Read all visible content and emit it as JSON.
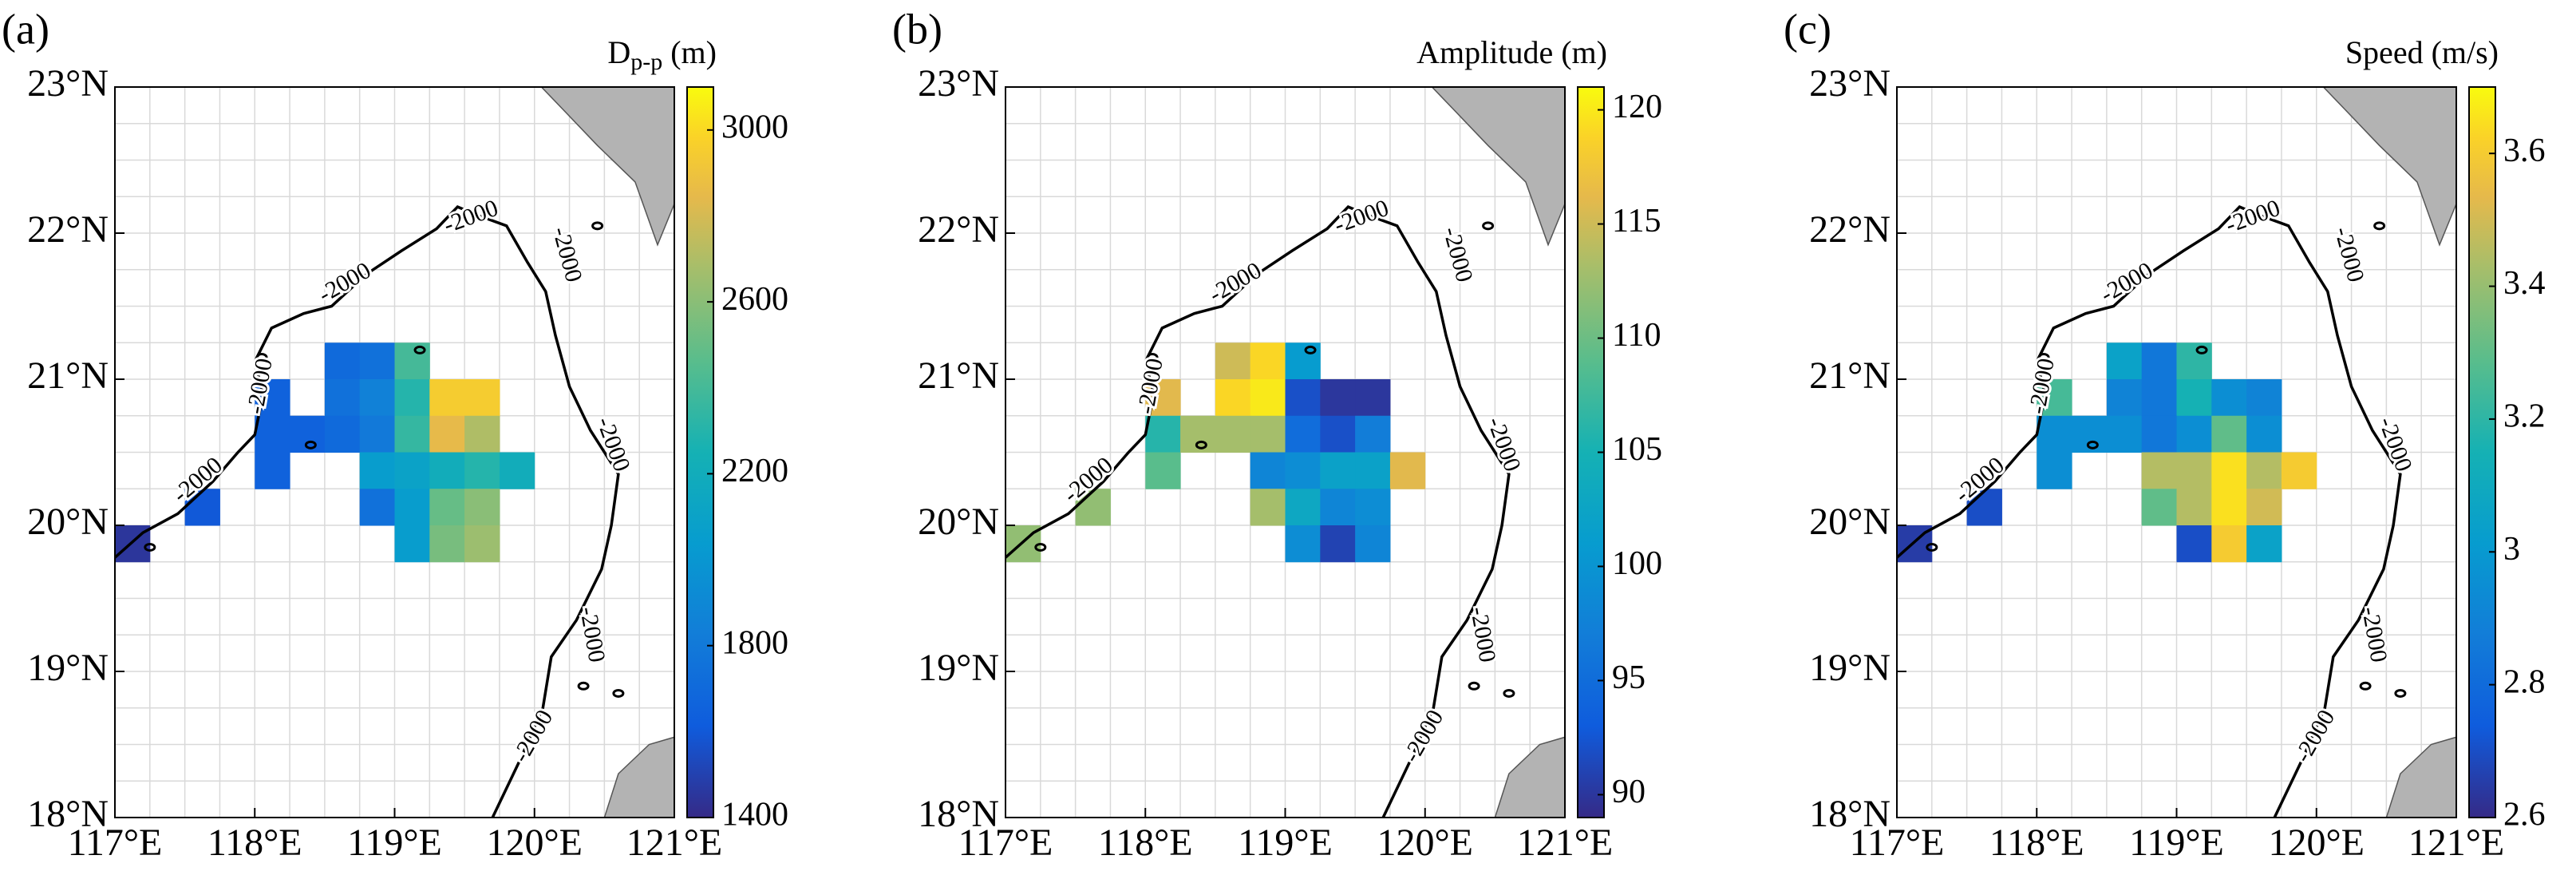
{
  "chart_data": [
    {
      "type": "heatmap",
      "panel_label": "(a)",
      "colorbar_label": {
        "text": "D",
        "sub": "p-p",
        "unit": "(m)"
      },
      "contour_label": "-2000",
      "xlim": [
        117,
        121
      ],
      "ylim": [
        18,
        23
      ],
      "xticks": [
        {
          "value": 117,
          "label": "117°E"
        },
        {
          "value": 118,
          "label": "118°E"
        },
        {
          "value": 119,
          "label": "119°E"
        },
        {
          "value": 120,
          "label": "120°E"
        },
        {
          "value": 121,
          "label": "121°E"
        }
      ],
      "yticks": [
        {
          "value": 18,
          "label": "18°N"
        },
        {
          "value": 19,
          "label": "19°N"
        },
        {
          "value": 20,
          "label": "20°N"
        },
        {
          "value": 21,
          "label": "21°N"
        },
        {
          "value": 22,
          "label": "22°N"
        },
        {
          "value": 23,
          "label": "23°N"
        }
      ],
      "clim": [
        1400,
        3100
      ],
      "cticks": [
        1400,
        1800,
        2200,
        2600,
        3000
      ],
      "x": [
        117.125,
        117.625,
        118.125,
        118.125,
        118.125,
        118.375,
        118.625,
        118.875,
        119.125,
        118.625,
        118.875,
        119.125,
        119.375,
        119.625,
        118.625,
        118.875,
        119.125,
        119.375,
        119.625,
        118.875,
        119.125,
        119.375,
        119.625,
        119.875,
        118.875,
        119.125,
        119.375,
        119.625,
        119.125,
        119.375,
        119.625
      ],
      "y": [
        19.875,
        20.125,
        20.875,
        20.625,
        20.375,
        20.625,
        21.125,
        21.125,
        21.125,
        20.875,
        20.875,
        20.875,
        20.875,
        20.875,
        20.625,
        20.625,
        20.625,
        20.625,
        20.625,
        20.375,
        20.375,
        20.375,
        20.375,
        20.375,
        20.125,
        20.125,
        20.125,
        20.125,
        19.875,
        19.875,
        19.875
      ],
      "values": [
        1450,
        1600,
        1650,
        1650,
        1650,
        1650,
        1700,
        1750,
        2400,
        1750,
        1850,
        2300,
        2950,
        2950,
        1700,
        1800,
        2350,
        2850,
        2700,
        2050,
        2100,
        2200,
        2300,
        2200,
        1750,
        2050,
        2500,
        2600,
        2050,
        2550,
        2650
      ]
    },
    {
      "type": "heatmap",
      "panel_label": "(b)",
      "colorbar_label": {
        "text": "Amplitude (m)"
      },
      "contour_label": "-2000",
      "xlim": [
        117,
        121
      ],
      "ylim": [
        18,
        23
      ],
      "xticks": [
        {
          "value": 117,
          "label": "117°E"
        },
        {
          "value": 118,
          "label": "118°E"
        },
        {
          "value": 119,
          "label": "119°E"
        },
        {
          "value": 120,
          "label": "120°E"
        },
        {
          "value": 121,
          "label": "121°E"
        }
      ],
      "yticks": [
        {
          "value": 18,
          "label": "18°N"
        },
        {
          "value": 19,
          "label": "19°N"
        },
        {
          "value": 20,
          "label": "20°N"
        },
        {
          "value": 21,
          "label": "21°N"
        },
        {
          "value": 22,
          "label": "22°N"
        },
        {
          "value": 23,
          "label": "23°N"
        }
      ],
      "clim": [
        89,
        121
      ],
      "cticks": [
        90,
        95,
        100,
        105,
        110,
        115,
        120
      ],
      "x": [
        117.125,
        117.625,
        118.125,
        118.125,
        118.125,
        118.375,
        118.625,
        118.875,
        119.125,
        118.625,
        118.875,
        119.125,
        119.375,
        119.625,
        118.625,
        118.875,
        119.125,
        119.375,
        119.625,
        118.875,
        119.125,
        119.375,
        119.625,
        119.875,
        118.875,
        119.125,
        119.375,
        119.625,
        119.125,
        119.375,
        119.625
      ],
      "y": [
        19.875,
        20.125,
        20.875,
        20.625,
        20.375,
        20.625,
        21.125,
        21.125,
        21.125,
        20.875,
        20.875,
        20.875,
        20.875,
        20.875,
        20.625,
        20.625,
        20.625,
        20.625,
        20.625,
        20.375,
        20.375,
        20.375,
        20.375,
        20.375,
        20.125,
        20.125,
        20.125,
        20.125,
        19.875,
        19.875,
        19.875
      ],
      "values": [
        112,
        112,
        116,
        106,
        109,
        113,
        115,
        119,
        101,
        119,
        120,
        92,
        90,
        90,
        113,
        113,
        95,
        92,
        97,
        98,
        99,
        102,
        102,
        116,
        113,
        103,
        98,
        99,
        99,
        91,
        98
      ]
    },
    {
      "type": "heatmap",
      "panel_label": "(c)",
      "colorbar_label": {
        "text": "Speed (m/s)"
      },
      "contour_label": "-2000",
      "xlim": [
        117,
        121
      ],
      "ylim": [
        18,
        23
      ],
      "xticks": [
        {
          "value": 117,
          "label": "117°E"
        },
        {
          "value": 118,
          "label": "118°E"
        },
        {
          "value": 119,
          "label": "119°E"
        },
        {
          "value": 120,
          "label": "120°E"
        },
        {
          "value": 121,
          "label": "121°E"
        }
      ],
      "yticks": [
        {
          "value": 18,
          "label": "18°N"
        },
        {
          "value": 19,
          "label": "19°N"
        },
        {
          "value": 20,
          "label": "20°N"
        },
        {
          "value": 21,
          "label": "21°N"
        },
        {
          "value": 22,
          "label": "22°N"
        },
        {
          "value": 23,
          "label": "23°N"
        }
      ],
      "clim": [
        2.6,
        3.7
      ],
      "cticks": [
        2.6,
        2.8,
        3,
        3.2,
        3.4,
        3.6
      ],
      "x": [
        117.125,
        117.625,
        118.125,
        118.125,
        118.125,
        118.375,
        118.625,
        118.875,
        119.125,
        118.625,
        118.875,
        119.125,
        119.375,
        119.625,
        118.625,
        118.875,
        119.125,
        119.375,
        119.625,
        118.875,
        119.125,
        119.375,
        119.625,
        119.875,
        118.875,
        119.125,
        119.375,
        119.625,
        119.125,
        119.375,
        119.625
      ],
      "y": [
        19.875,
        20.125,
        20.875,
        20.625,
        20.375,
        20.625,
        21.125,
        21.125,
        21.125,
        20.875,
        20.875,
        20.875,
        20.875,
        20.875,
        20.625,
        20.625,
        20.625,
        20.625,
        20.625,
        20.375,
        20.375,
        20.375,
        20.375,
        20.375,
        20.125,
        20.125,
        20.125,
        20.125,
        19.875,
        19.875,
        19.875
      ],
      "values": [
        2.65,
        2.7,
        3.25,
        2.95,
        2.95,
        2.95,
        3.05,
        2.85,
        3.2,
        2.9,
        2.85,
        3.15,
        2.95,
        2.9,
        2.95,
        2.85,
        2.95,
        3.3,
        2.95,
        3.45,
        3.45,
        3.65,
        3.45,
        3.6,
        3.3,
        3.45,
        3.65,
        3.5,
        2.7,
        3.6,
        3.05
      ]
    }
  ]
}
